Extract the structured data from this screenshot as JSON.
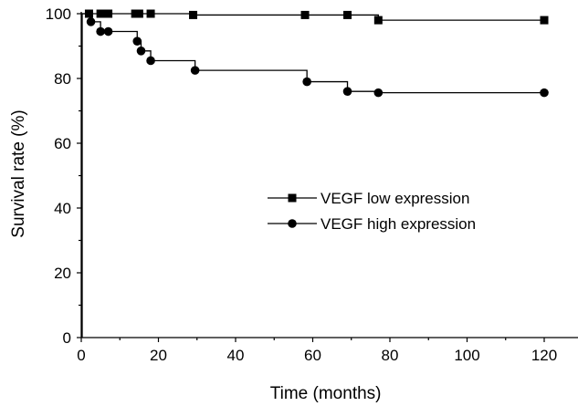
{
  "chart_data": {
    "type": "line",
    "title": "",
    "xlabel": "Time (months)",
    "ylabel": "Survival rate (%)",
    "xlim": [
      0,
      130
    ],
    "ylim": [
      0,
      100
    ],
    "x_ticks": [
      0,
      20,
      40,
      60,
      80,
      100,
      120
    ],
    "y_ticks": [
      0,
      20,
      40,
      60,
      80,
      100
    ],
    "legend_position": "center-right",
    "series": [
      {
        "name": "VEGF low expression",
        "marker": "square",
        "points": [
          [
            0,
            100
          ],
          [
            2,
            100
          ],
          [
            5,
            100
          ],
          [
            6,
            100
          ],
          [
            7,
            100
          ],
          [
            14,
            100
          ],
          [
            15,
            100
          ],
          [
            18,
            100
          ],
          [
            29,
            99.6
          ],
          [
            58,
            99.6
          ],
          [
            69,
            99.6
          ],
          [
            77,
            98
          ],
          [
            120,
            98
          ]
        ]
      },
      {
        "name": "VEGF high expression",
        "marker": "circle",
        "points": [
          [
            0,
            100
          ],
          [
            2.5,
            97.5
          ],
          [
            5,
            94.5
          ],
          [
            7,
            94.5
          ],
          [
            14.5,
            91.5
          ],
          [
            15.5,
            88.5
          ],
          [
            18,
            85.5
          ],
          [
            29.5,
            82.5
          ],
          [
            58.5,
            79
          ],
          [
            69,
            76
          ],
          [
            77,
            75.6
          ],
          [
            120,
            75.6
          ]
        ]
      }
    ]
  }
}
